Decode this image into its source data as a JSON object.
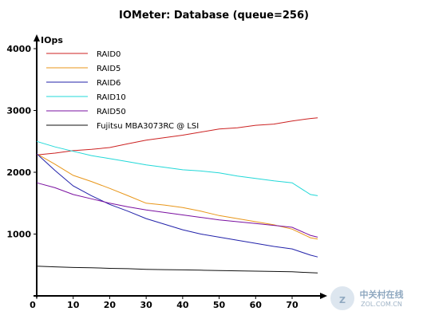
{
  "chart_data": {
    "type": "line",
    "title": "IOMeter: Database (queue=256)",
    "ylabel": "IOps",
    "xlabel": "",
    "xlim": [
      0,
      77
    ],
    "ylim": [
      0,
      4000
    ],
    "x_ticks": [
      0,
      10,
      20,
      30,
      40,
      50,
      60,
      70
    ],
    "y_ticks": [
      1000,
      2000,
      3000,
      4000
    ],
    "grid": false,
    "legend_position": "top-left",
    "x": [
      0,
      5,
      10,
      15,
      20,
      25,
      30,
      35,
      40,
      45,
      50,
      55,
      60,
      65,
      70,
      75,
      77
    ],
    "series": [
      {
        "name": "RAID0",
        "color": "#cc2222",
        "values": [
          2280,
          2310,
          2350,
          2370,
          2400,
          2460,
          2520,
          2560,
          2600,
          2650,
          2700,
          2720,
          2760,
          2780,
          2830,
          2870,
          2880
        ]
      },
      {
        "name": "RAID5",
        "color": "#e89619",
        "values": [
          2300,
          2130,
          1950,
          1850,
          1740,
          1620,
          1500,
          1470,
          1430,
          1370,
          1300,
          1250,
          1200,
          1150,
          1080,
          940,
          920
        ]
      },
      {
        "name": "RAID6",
        "color": "#2222aa",
        "values": [
          2300,
          2030,
          1780,
          1620,
          1480,
          1370,
          1250,
          1160,
          1070,
          1000,
          950,
          900,
          850,
          800,
          760,
          660,
          630
        ]
      },
      {
        "name": "RAID10",
        "color": "#22d8d8",
        "values": [
          2500,
          2410,
          2340,
          2270,
          2220,
          2170,
          2120,
          2080,
          2040,
          2020,
          1990,
          1940,
          1900,
          1860,
          1830,
          1640,
          1620
        ]
      },
      {
        "name": "RAID50",
        "color": "#7a10a0",
        "values": [
          1830,
          1750,
          1640,
          1570,
          1500,
          1440,
          1390,
          1350,
          1310,
          1270,
          1230,
          1200,
          1170,
          1140,
          1110,
          980,
          950
        ]
      },
      {
        "name": "Fujitsu MBA3073RC @ LSI",
        "color": "#111111",
        "values": [
          480,
          470,
          460,
          455,
          445,
          440,
          430,
          425,
          420,
          415,
          410,
          405,
          400,
          395,
          390,
          375,
          370
        ]
      }
    ]
  },
  "watermark": {
    "glyph": "Z",
    "text": "中关村在线",
    "sub": "ZOL.COM.CN"
  }
}
